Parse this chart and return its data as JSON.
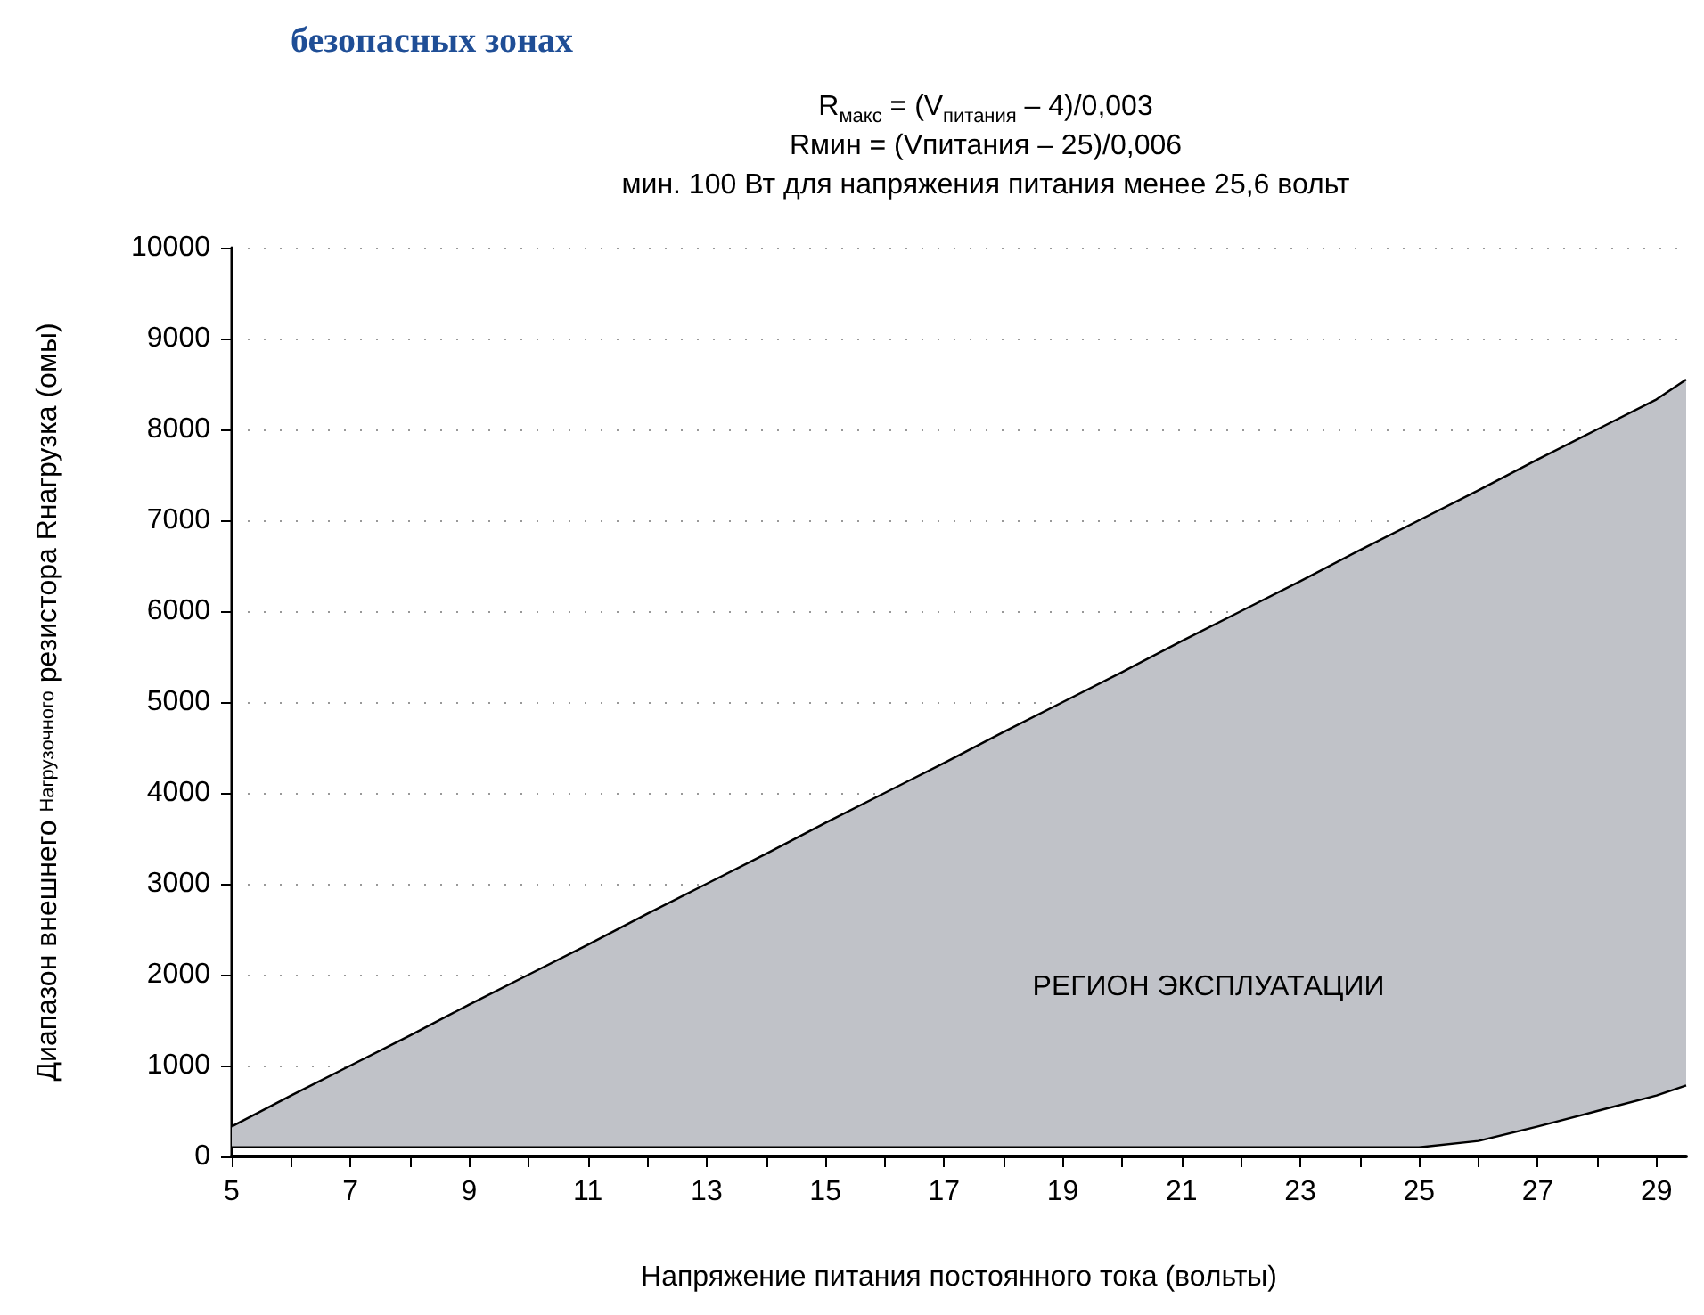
{
  "chart_data": {
    "type": "area",
    "title": "безопасных зонах",
    "subtitle": [
      "R$_{макс}$ = (V$_{питания}$ – 4)/0,003",
      "Rмин = (Vпитания – 25)/0,006",
      "мин. 100 Вт для напряжения питания менее 25,6 вольт"
    ],
    "xlabel": "Напряжение питания постоянного тока (вольты)",
    "ylabel": "Диапазон внешнего $_{Нагрузочного}$ резистора Rнагрузка (омы)",
    "x": [
      5,
      6,
      7,
      8,
      9,
      10,
      11,
      12,
      13,
      14,
      15,
      16,
      17,
      18,
      19,
      20,
      21,
      22,
      23,
      24,
      25,
      26,
      27,
      28,
      29,
      29.5
    ],
    "series": [
      {
        "color": "#c0c2c8",
        "values": [
          330,
          670,
          1000,
          1330,
          1670,
          2000,
          2330,
          2670,
          3000,
          3330,
          3670,
          4000,
          4330,
          4670,
          5000,
          5330,
          5670,
          6000,
          6330,
          6670,
          7000,
          7330,
          7670,
          8000,
          8330,
          8550
        ]
      },
      {
        "type": "line",
        "color": "#000000",
        "values": [
          100,
          100,
          100,
          100,
          100,
          100,
          100,
          100,
          100,
          100,
          100,
          100,
          100,
          100,
          100,
          100,
          100,
          100,
          100,
          100,
          100,
          170,
          330,
          500,
          670,
          780
        ]
      }
    ],
    "annotations": [
      "РЕГИОН ЭКСПЛУАТАЦИИ"
    ],
    "xlim": [
      5,
      29.5
    ],
    "xticks": [
      5,
      {
        "value": 6,
        "label": null
      },
      7,
      {
        "value": 8,
        "label": null
      },
      9,
      {
        "value": 10,
        "label": null
      },
      11,
      {
        "value": 12,
        "label": null
      },
      13,
      {
        "value": 14,
        "label": null
      },
      15,
      {
        "value": 16,
        "label": null
      },
      17,
      {
        "value": 18,
        "label": null
      },
      19,
      {
        "value": 20,
        "label": null
      },
      21,
      {
        "value": 22,
        "label": null
      },
      23,
      {
        "value": 24,
        "label": null
      },
      25,
      {
        "value": 26,
        "label": null
      },
      27,
      {
        "value": 28,
        "label": null
      },
      29
    ],
    "ylim": [
      0,
      10000
    ],
    "yticks": [
      0,
      1000,
      2000,
      3000,
      4000,
      5000,
      6000,
      7000,
      8000,
      9000,
      10000
    ],
    "grid": "y"
  }
}
